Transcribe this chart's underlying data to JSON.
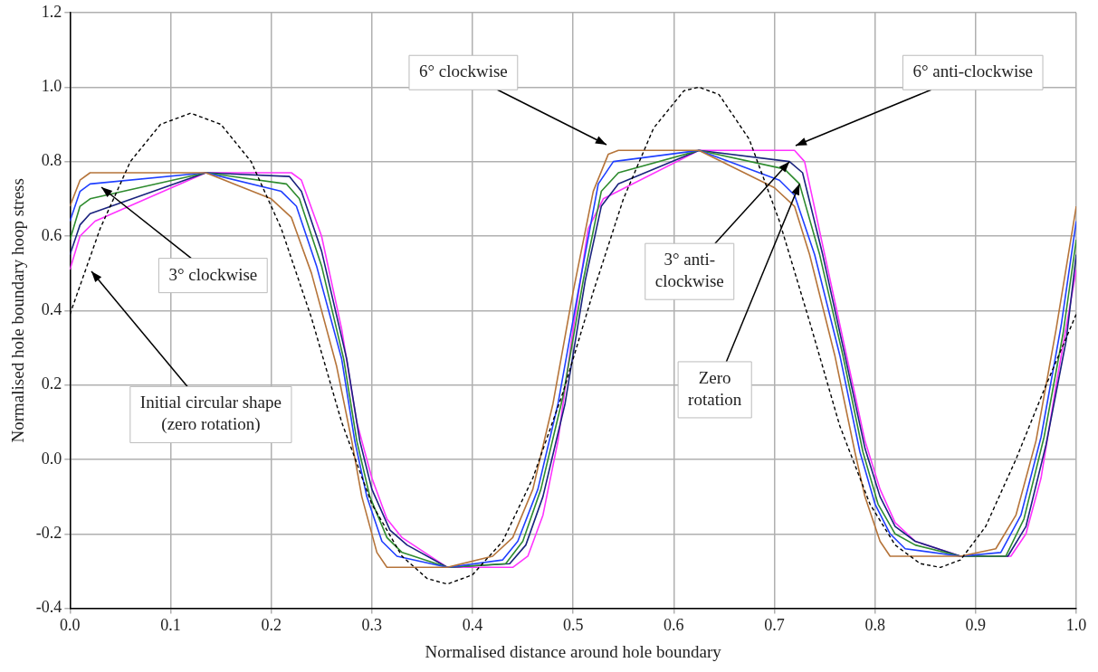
{
  "chart_data": {
    "type": "line",
    "xlabel": "Normalised distance around hole boundary",
    "ylabel": "Normalised hole boundary hoop stress",
    "xlim": [
      0,
      1
    ],
    "xticks": [
      {
        "value": 0,
        "label": "0.0"
      },
      0.1,
      0.2,
      0.3,
      0.4,
      0.5,
      0.6,
      0.7,
      0.8,
      0.9,
      {
        "value": 1,
        "label": "1.0"
      }
    ],
    "ylim": [
      -0.4,
      1.2
    ],
    "yticks": [
      -0.4,
      -0.2,
      {
        "value": 0,
        "label": "0.0"
      },
      0.2,
      0.4,
      0.6,
      0.8,
      {
        "value": 1,
        "label": "1.0"
      },
      1.2
    ],
    "grid": true,
    "legend": false,
    "marker": "none",
    "series": [
      {
        "color": "#000000",
        "line_style": "dashed",
        "x": [
          0,
          0.03,
          0.06,
          0.09,
          0.12,
          0.15,
          0.18,
          0.21,
          0.24,
          0.27,
          0.3,
          0.33,
          0.355,
          0.375,
          0.4,
          0.43,
          0.46,
          0.49,
          0.52,
          0.55,
          0.58,
          0.61,
          0.625,
          0.645,
          0.675,
          0.705,
          0.735,
          0.765,
          0.795,
          0.82,
          0.845,
          0.865,
          0.885,
          0.91,
          0.94,
          0.97,
          1
        ],
        "values": [
          0.39,
          0.62,
          0.8,
          0.9,
          0.93,
          0.9,
          0.8,
          0.62,
          0.38,
          0.1,
          -0.12,
          -0.26,
          -0.32,
          -0.335,
          -0.31,
          -0.22,
          -0.05,
          0.18,
          0.45,
          0.7,
          0.89,
          0.99,
          1.0,
          0.98,
          0.86,
          0.64,
          0.37,
          0.09,
          -0.12,
          -0.23,
          -0.28,
          -0.29,
          -0.27,
          -0.18,
          0.0,
          0.2,
          0.39
        ]
      },
      {
        "color": "#b5743a",
        "x": [
          0,
          0.01,
          0.02,
          0.135,
          0.2,
          0.22,
          0.24,
          0.265,
          0.28,
          0.29,
          0.305,
          0.315,
          0.33,
          0.375,
          0.42,
          0.44,
          0.46,
          0.48,
          0.5,
          0.52,
          0.535,
          0.545,
          0.625,
          0.7,
          0.72,
          0.735,
          0.76,
          0.78,
          0.79,
          0.805,
          0.815,
          0.885,
          0.92,
          0.94,
          0.96,
          0.98,
          1
        ],
        "values": [
          0.68,
          0.75,
          0.77,
          0.77,
          0.7,
          0.65,
          0.5,
          0.25,
          0.05,
          -0.1,
          -0.25,
          -0.29,
          -0.29,
          -0.29,
          -0.26,
          -0.21,
          -0.08,
          0.15,
          0.45,
          0.72,
          0.82,
          0.83,
          0.83,
          0.73,
          0.68,
          0.55,
          0.28,
          0.02,
          -0.1,
          -0.22,
          -0.26,
          -0.26,
          -0.24,
          -0.15,
          0.05,
          0.35,
          0.68
        ]
      },
      {
        "color": "#1f3fff",
        "x": [
          0,
          0.01,
          0.02,
          0.135,
          0.21,
          0.225,
          0.245,
          0.27,
          0.283,
          0.295,
          0.31,
          0.325,
          0.375,
          0.43,
          0.445,
          0.465,
          0.485,
          0.505,
          0.525,
          0.54,
          0.625,
          0.705,
          0.72,
          0.74,
          0.765,
          0.785,
          0.8,
          0.815,
          0.83,
          0.885,
          0.925,
          0.945,
          0.965,
          0.985,
          1
        ],
        "values": [
          0.64,
          0.72,
          0.74,
          0.77,
          0.72,
          0.68,
          0.52,
          0.27,
          0.05,
          -0.1,
          -0.22,
          -0.26,
          -0.29,
          -0.27,
          -0.22,
          -0.08,
          0.15,
          0.45,
          0.74,
          0.8,
          0.83,
          0.75,
          0.71,
          0.55,
          0.28,
          0.02,
          -0.12,
          -0.2,
          -0.24,
          -0.26,
          -0.25,
          -0.15,
          0.06,
          0.36,
          0.64
        ]
      },
      {
        "color": "#2e8b2e",
        "x": [
          0,
          0.01,
          0.02,
          0.135,
          0.215,
          0.228,
          0.25,
          0.272,
          0.285,
          0.298,
          0.315,
          0.33,
          0.375,
          0.433,
          0.45,
          0.468,
          0.49,
          0.51,
          0.528,
          0.545,
          0.625,
          0.71,
          0.725,
          0.745,
          0.768,
          0.788,
          0.803,
          0.82,
          0.84,
          0.885,
          0.93,
          0.948,
          0.968,
          0.987,
          1
        ],
        "values": [
          0.59,
          0.68,
          0.7,
          0.77,
          0.74,
          0.7,
          0.52,
          0.27,
          0.05,
          -0.1,
          -0.21,
          -0.25,
          -0.29,
          -0.28,
          -0.22,
          -0.08,
          0.17,
          0.48,
          0.72,
          0.77,
          0.83,
          0.78,
          0.74,
          0.55,
          0.28,
          0.02,
          -0.12,
          -0.2,
          -0.23,
          -0.26,
          -0.26,
          -0.16,
          0.06,
          0.34,
          0.59
        ]
      },
      {
        "color": "#1a237e",
        "x": [
          0,
          0.01,
          0.02,
          0.135,
          0.218,
          0.23,
          0.25,
          0.275,
          0.288,
          0.3,
          0.318,
          0.335,
          0.375,
          0.437,
          0.453,
          0.47,
          0.492,
          0.512,
          0.528,
          0.545,
          0.625,
          0.715,
          0.728,
          0.748,
          0.77,
          0.79,
          0.805,
          0.82,
          0.84,
          0.885,
          0.932,
          0.95,
          0.97,
          0.99,
          1
        ],
        "values": [
          0.55,
          0.63,
          0.66,
          0.77,
          0.76,
          0.72,
          0.56,
          0.27,
          0.05,
          -0.08,
          -0.19,
          -0.23,
          -0.29,
          -0.28,
          -0.23,
          -0.1,
          0.15,
          0.48,
          0.68,
          0.74,
          0.83,
          0.8,
          0.77,
          0.55,
          0.28,
          0.03,
          -0.1,
          -0.18,
          -0.22,
          -0.26,
          -0.26,
          -0.18,
          0.04,
          0.32,
          0.55
        ]
      },
      {
        "color": "#ff33ff",
        "x": [
          0,
          0.01,
          0.025,
          0.135,
          0.22,
          0.23,
          0.25,
          0.27,
          0.285,
          0.3,
          0.315,
          0.33,
          0.375,
          0.44,
          0.455,
          0.47,
          0.485,
          0.5,
          0.515,
          0.53,
          0.625,
          0.72,
          0.73,
          0.75,
          0.77,
          0.79,
          0.805,
          0.82,
          0.84,
          0.885,
          0.935,
          0.95,
          0.965,
          0.98,
          1
        ],
        "values": [
          0.51,
          0.6,
          0.64,
          0.77,
          0.77,
          0.75,
          0.6,
          0.35,
          0.1,
          -0.05,
          -0.16,
          -0.21,
          -0.29,
          -0.29,
          -0.26,
          -0.15,
          0.05,
          0.35,
          0.62,
          0.7,
          0.83,
          0.83,
          0.8,
          0.55,
          0.3,
          0.05,
          -0.08,
          -0.17,
          -0.22,
          -0.26,
          -0.26,
          -0.2,
          -0.05,
          0.2,
          0.51
        ]
      }
    ],
    "annotations": [
      "6° clockwise",
      "6° anti-clockwise",
      "3° clockwise",
      "Initial circular shape\n(zero rotation)",
      {
        "text": "3° anti-\nclockwise",
        "x": 0.715,
        "y": 0.8
      },
      {
        "text": "Zero\nrotation",
        "x": 0.725,
        "y": 0.74
      }
    ]
  }
}
